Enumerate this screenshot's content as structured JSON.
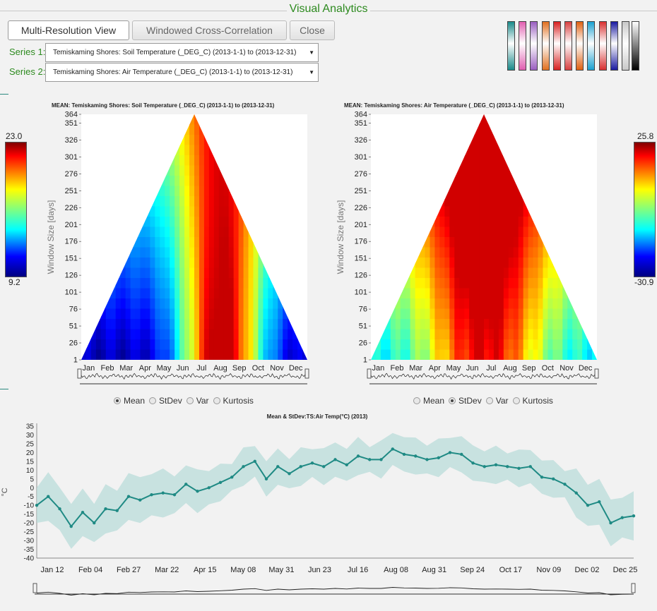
{
  "header": {
    "title": "Visual Analytics"
  },
  "toolbar": {
    "multi_label": "Multi-Resolution View",
    "cross_label": "Windowed Cross-Correlation",
    "close_label": "Close"
  },
  "series1": {
    "label": "Series 1:",
    "value": "Temiskaming Shores: Soil Temperature (_DEG_C) (2013-1-1) to (2013-12-31)"
  },
  "series2": {
    "label": "Series 2:",
    "value": "Temiskaming Shores: Air Temperature (_DEG_C) (2013-1-1) to (2013-12-31)"
  },
  "colormaps": [
    "#1a8a8a",
    "#e05fb0",
    "#9a5ec0",
    "#e07020",
    "#d82020",
    "#d84040",
    "#e06010",
    "#1aa0d0",
    "#d83030",
    "#1a1aa0",
    "#c8c8c8"
  ],
  "heatmap_left": {
    "title": "MEAN: Temiskaming Shores: Soil Temperature (_DEG_C) (2013-1-1) to (2013-12-31)",
    "ylabel": "Window Size [days]",
    "cbar_max": "23.0",
    "cbar_min": "9.2",
    "options": [
      {
        "label": "Mean",
        "checked": true
      },
      {
        "label": "StDev",
        "checked": false
      },
      {
        "label": "Var",
        "checked": false
      },
      {
        "label": "Kurtosis",
        "checked": false
      }
    ]
  },
  "heatmap_right": {
    "title": "MEAN: Temiskaming Shores: Air Temperature (_DEG_C) (2013-1-1) to (2013-12-31)",
    "ylabel": "Window Size [days]",
    "cbar_max": "25.8",
    "cbar_min": "-30.9",
    "options": [
      {
        "label": "Mean",
        "checked": false
      },
      {
        "label": "StDev",
        "checked": true
      },
      {
        "label": "Var",
        "checked": false
      },
      {
        "label": "Kurtosis",
        "checked": false
      }
    ]
  },
  "chart_data": [
    {
      "type": "heatmap",
      "title": "MEAN: Temiskaming Shores: Soil Temperature (_DEG_C) (2013-1-1) to (2013-12-31)",
      "ylabel": "Window Size [days]",
      "yticks": [
        "1",
        "26",
        "51",
        "76",
        "101",
        "126",
        "151",
        "176",
        "201",
        "226",
        "251",
        "276",
        "301",
        "326",
        "351",
        "364"
      ],
      "xticks": [
        "Jan",
        "Feb",
        "Mar",
        "Apr",
        "May",
        "Jun",
        "Jul",
        "Aug",
        "Sep",
        "Oct",
        "Nov",
        "Dec"
      ],
      "colorbar_range": [
        9.2,
        23.0
      ]
    },
    {
      "type": "heatmap",
      "title": "MEAN: Temiskaming Shores: Air Temperature (_DEG_C) (2013-1-1) to (2013-12-31)",
      "ylabel": "Window Size [days]",
      "yticks": [
        "1",
        "26",
        "51",
        "76",
        "101",
        "126",
        "151",
        "176",
        "201",
        "226",
        "251",
        "276",
        "301",
        "326",
        "351",
        "364"
      ],
      "xticks": [
        "Jan",
        "Feb",
        "Mar",
        "Apr",
        "May",
        "Jun",
        "Jul",
        "Aug",
        "Sep",
        "Oct",
        "Nov",
        "Dec"
      ],
      "colorbar_range": [
        -30.9,
        25.8
      ]
    },
    {
      "type": "line",
      "title": "Mean & StDev:TS:Air Temp(°C) (2013)",
      "ylabel": "°C",
      "ylim": [
        -40,
        35
      ],
      "yticks": [
        "35",
        "30",
        "25",
        "20",
        "15",
        "10",
        "5",
        "0",
        "-5",
        "-10",
        "-15",
        "-20",
        "-25",
        "-30",
        "-35",
        "-40"
      ],
      "xticks": [
        "Jan 12",
        "Feb 04",
        "Feb 27",
        "Mar 22",
        "Apr 15",
        "May 08",
        "May 31",
        "Jun 23",
        "Jul 16",
        "Aug 08",
        "Aug 31",
        "Sep 24",
        "Oct 17",
        "Nov 09",
        "Dec 02",
        "Dec 25"
      ],
      "series": [
        {
          "x": [
            1,
            8,
            15,
            22,
            29,
            36,
            43,
            50,
            57,
            64,
            71,
            78,
            85,
            92,
            99,
            106,
            113,
            120,
            127,
            134,
            141,
            148,
            155,
            162,
            169,
            176,
            183,
            190,
            197,
            204,
            211,
            218,
            225,
            232,
            239,
            246,
            253,
            260,
            267,
            274,
            281,
            288,
            295,
            302,
            309,
            316,
            323,
            330,
            337,
            344,
            351,
            358,
            365
          ],
          "values": [
            -10,
            -5,
            -12,
            -22,
            -14,
            -20,
            -12,
            -13,
            -5,
            -7,
            -4,
            -3,
            -4,
            2,
            -2,
            0,
            3,
            6,
            12,
            15,
            5,
            12,
            8,
            12,
            14,
            12,
            16,
            13,
            18,
            16,
            16,
            22,
            19,
            18,
            16,
            17,
            20,
            19,
            14,
            12,
            13,
            12,
            11,
            12,
            6,
            5,
            2,
            -3,
            -10,
            -8,
            -20,
            -17,
            -16
          ]
        }
      ]
    }
  ]
}
